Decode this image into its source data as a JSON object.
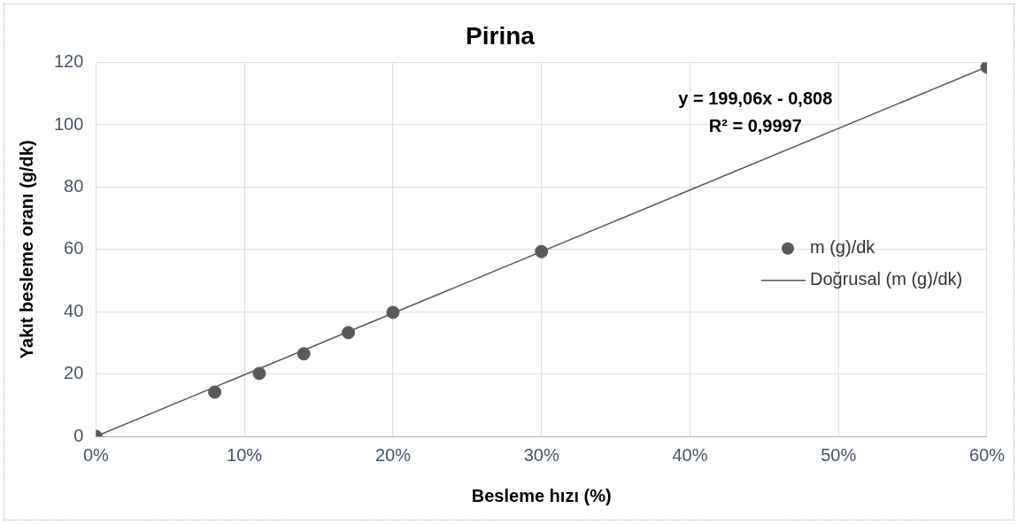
{
  "chart_data": {
    "type": "scatter",
    "title": "Pirina",
    "xlabel": "Besleme hızı (%)",
    "ylabel": "Yakıt besleme oranı (g/dk)",
    "xlim": [
      0,
      60
    ],
    "xticks": [
      {
        "value": 0,
        "label": "0%"
      },
      {
        "value": 10,
        "label": "10%"
      },
      {
        "value": 20,
        "label": "20%"
      },
      {
        "value": 30,
        "label": "30%"
      },
      {
        "value": 40,
        "label": "40%"
      },
      {
        "value": 50,
        "label": "50%"
      },
      {
        "value": 60,
        "label": "60%"
      }
    ],
    "ylim": [
      0,
      120
    ],
    "yticks": [
      0,
      20,
      40,
      60,
      80,
      100,
      120
    ],
    "grid": true,
    "legend": "right",
    "series": [
      {
        "name": "m (g)/dk",
        "type": "scatter",
        "color": "#595959",
        "marker": "circle",
        "x": [
          0,
          8,
          11,
          14,
          17,
          20,
          30,
          60
        ],
        "values": [
          0,
          14.2,
          20.2,
          26.5,
          33.3,
          39.8,
          59.3,
          118.5
        ]
      },
      {
        "name": "Doğrusal (m (g)/dk)",
        "type": "line",
        "color": "#595959",
        "line_style": "solid",
        "marker": "none",
        "x": [
          0,
          60
        ],
        "values": [
          0,
          118.6
        ]
      }
    ],
    "annotations": [
      "y = 199,06x - 0,808",
      "R² = 0,9997"
    ]
  }
}
